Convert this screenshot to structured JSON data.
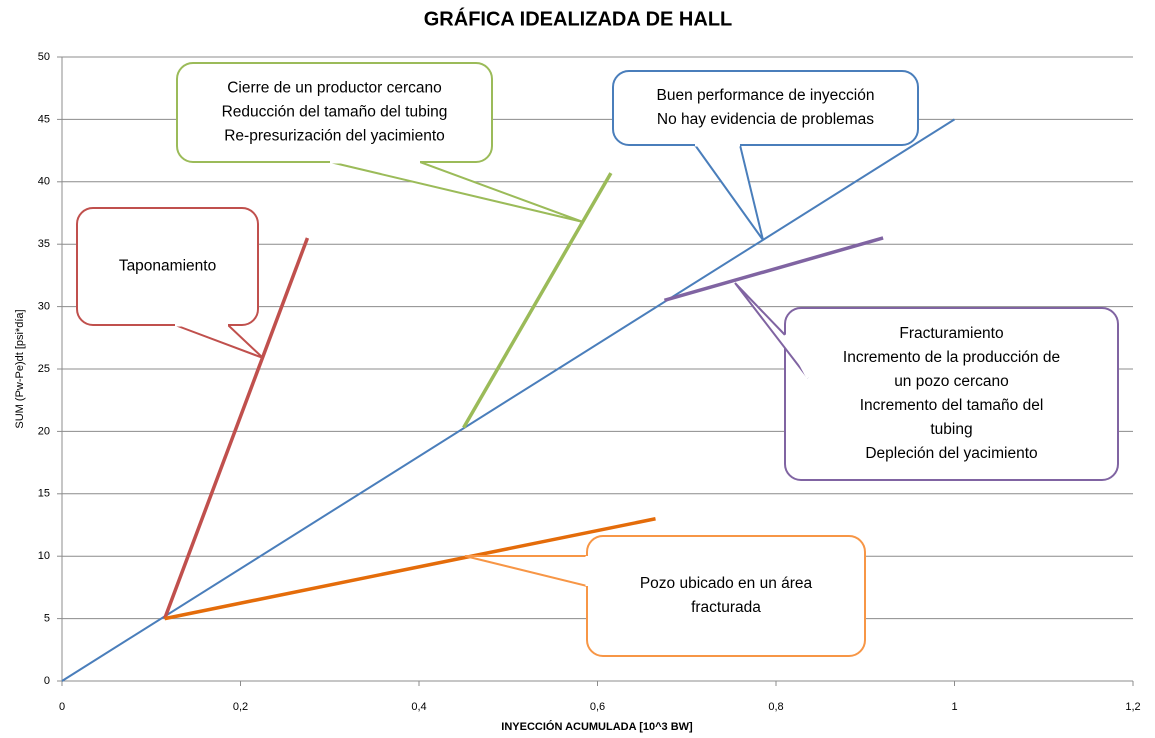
{
  "chart_data": {
    "type": "line",
    "title": "GRÁFICA IDEALIZADA DE HALL",
    "x_label": "INYECCIÓN ACUMULADA  [10^3 BW]",
    "y_label": "SUM (Pw-Pe)dt  [psi*día]",
    "xlim": [
      0,
      1.2
    ],
    "xticks": [
      0,
      {
        "value": 0.2,
        "label": "0,2"
      },
      {
        "value": 0.4,
        "label": "0,4"
      },
      {
        "value": 0.6,
        "label": "0,6"
      },
      {
        "value": 0.8,
        "label": "0,8"
      },
      1,
      {
        "value": 1.2,
        "label": "1,2"
      }
    ],
    "ylim": [
      0,
      50
    ],
    "yticks": [
      0,
      5,
      10,
      15,
      20,
      25,
      30,
      35,
      40,
      45,
      50
    ],
    "grid": true,
    "series": [
      {
        "color": "#4a7ebb",
        "x": [
          0,
          1
        ],
        "values": [
          0,
          45
        ]
      },
      {
        "color": "#c0504d",
        "x": [
          0.115,
          0.275
        ],
        "values": [
          5,
          35.5
        ]
      },
      {
        "color": "#9bbb59",
        "x": [
          0.45,
          0.615
        ],
        "values": [
          20.3,
          40.7
        ]
      },
      {
        "color": "#8064a2",
        "x": [
          0.675,
          0.92
        ],
        "values": [
          30.5,
          35.5
        ]
      },
      {
        "color": "#e46c0a",
        "x": [
          0.115,
          0.665
        ],
        "values": [
          5,
          13
        ]
      }
    ],
    "annotations": [
      {
        "color": "#c0504d",
        "lines": [
          "Taponamiento"
        ]
      },
      {
        "color": "#9bbb59",
        "lines": [
          "Cierre de un productor cercano",
          "Reducción del tamaño del tubing",
          "Re-presurización del yacimiento"
        ]
      },
      {
        "color": "#4a7ebb",
        "lines": [
          "Buen performance de inyección",
          "No hay evidencia de problemas"
        ]
      },
      {
        "color": "#8064a2",
        "lines": [
          "Fracturamiento",
          "Incremento de la producción de",
          "un pozo cercano",
          "Incremento del tamaño del",
          "tubing",
          "Depleción del yacimiento"
        ]
      },
      {
        "color": "#f79646",
        "lines": [
          "Pozo ubicado en un área",
          "fracturada"
        ]
      }
    ]
  }
}
